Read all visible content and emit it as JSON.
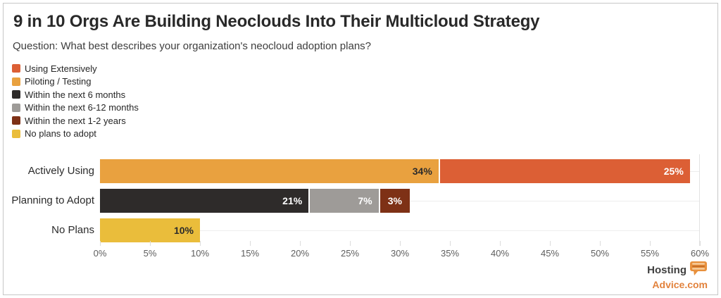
{
  "header": {
    "title": "9 in 10 Orgs Are Building Neoclouds Into Their Multicloud Strategy",
    "subtitle": "Question: What best describes your organization's neocloud adoption plans?"
  },
  "legend": {
    "position": "top-left",
    "items": [
      {
        "label": "Using Extensively",
        "color": "#dc5f35"
      },
      {
        "label": "Piloting / Testing",
        "color": "#e9a13f"
      },
      {
        "label": "Within the next 6 months",
        "color": "#2e2b2a"
      },
      {
        "label": "Within the next 6-12 months",
        "color": "#9e9b98"
      },
      {
        "label": "Within the next 1-2 years",
        "color": "#7e3116"
      },
      {
        "label": "No plans to adopt",
        "color": "#eabd3b"
      }
    ]
  },
  "chart_data": {
    "type": "bar",
    "orientation": "horizontal",
    "stacked": true,
    "title": "9 in 10 Orgs Are Building Neoclouds Into Their Multicloud Strategy",
    "subtitle": "Question: What best describes your organization's neocloud adoption plans?",
    "categories": [
      "Actively Using",
      "Planning to Adopt",
      "No Plans"
    ],
    "series": [
      {
        "name": "Using Extensively",
        "color": "#dc5f35",
        "values": [
          25,
          0,
          0
        ]
      },
      {
        "name": "Piloting / Testing",
        "color": "#e9a13f",
        "values": [
          34,
          0,
          0
        ]
      },
      {
        "name": "Within the next 6 months",
        "color": "#2e2b2a",
        "values": [
          0,
          21,
          0
        ]
      },
      {
        "name": "Within the next 6-12 months",
        "color": "#9e9b98",
        "values": [
          0,
          7,
          0
        ]
      },
      {
        "name": "Within the next 1-2 years",
        "color": "#7e3116",
        "values": [
          0,
          3,
          0
        ]
      },
      {
        "name": "No plans to adopt",
        "color": "#eabd3b",
        "values": [
          0,
          0,
          10
        ]
      }
    ],
    "rows": [
      {
        "label": "Actively Using",
        "segments": [
          {
            "series": "Piloting / Testing",
            "value": 34,
            "label": "34%",
            "color": "#e9a13f",
            "label_color": "#2b2b2b"
          },
          {
            "series": "Using Extensively",
            "value": 25,
            "label": "25%",
            "color": "#dc5f35",
            "label_color": "#ffffff"
          }
        ]
      },
      {
        "label": "Planning to Adopt",
        "segments": [
          {
            "series": "Within the next 6 months",
            "value": 21,
            "label": "21%",
            "color": "#2e2b2a",
            "label_color": "#ffffff"
          },
          {
            "series": "Within the next 6-12 months",
            "value": 7,
            "label": "7%",
            "color": "#9e9b98",
            "label_color": "#ffffff"
          },
          {
            "series": "Within the next 1-2 years",
            "value": 3,
            "label": "3%",
            "color": "#7e3116",
            "label_color": "#ffffff"
          }
        ]
      },
      {
        "label": "No Plans",
        "segments": [
          {
            "series": "No plans to adopt",
            "value": 10,
            "label": "10%",
            "color": "#eabd3b",
            "label_color": "#2b2b2b"
          }
        ]
      }
    ],
    "xlabel": "",
    "ylabel": "",
    "value_suffix": "%",
    "x_axis": {
      "min": 0,
      "max": 60,
      "tick_step": 5,
      "tick_labels": [
        "0%",
        "5%",
        "10%",
        "15%",
        "20%",
        "25%",
        "30%",
        "35%",
        "40%",
        "45%",
        "50%",
        "55%",
        "60%"
      ]
    },
    "grid": "horizontal-row-lines, end-line-at-60",
    "legend_position": "top-left"
  },
  "footer": {
    "brand_top": "Hosting",
    "brand_bottom": "Advice.com",
    "brand_accent_color": "#e2823c",
    "brand_icon": "speech-bubble-server-icon"
  }
}
